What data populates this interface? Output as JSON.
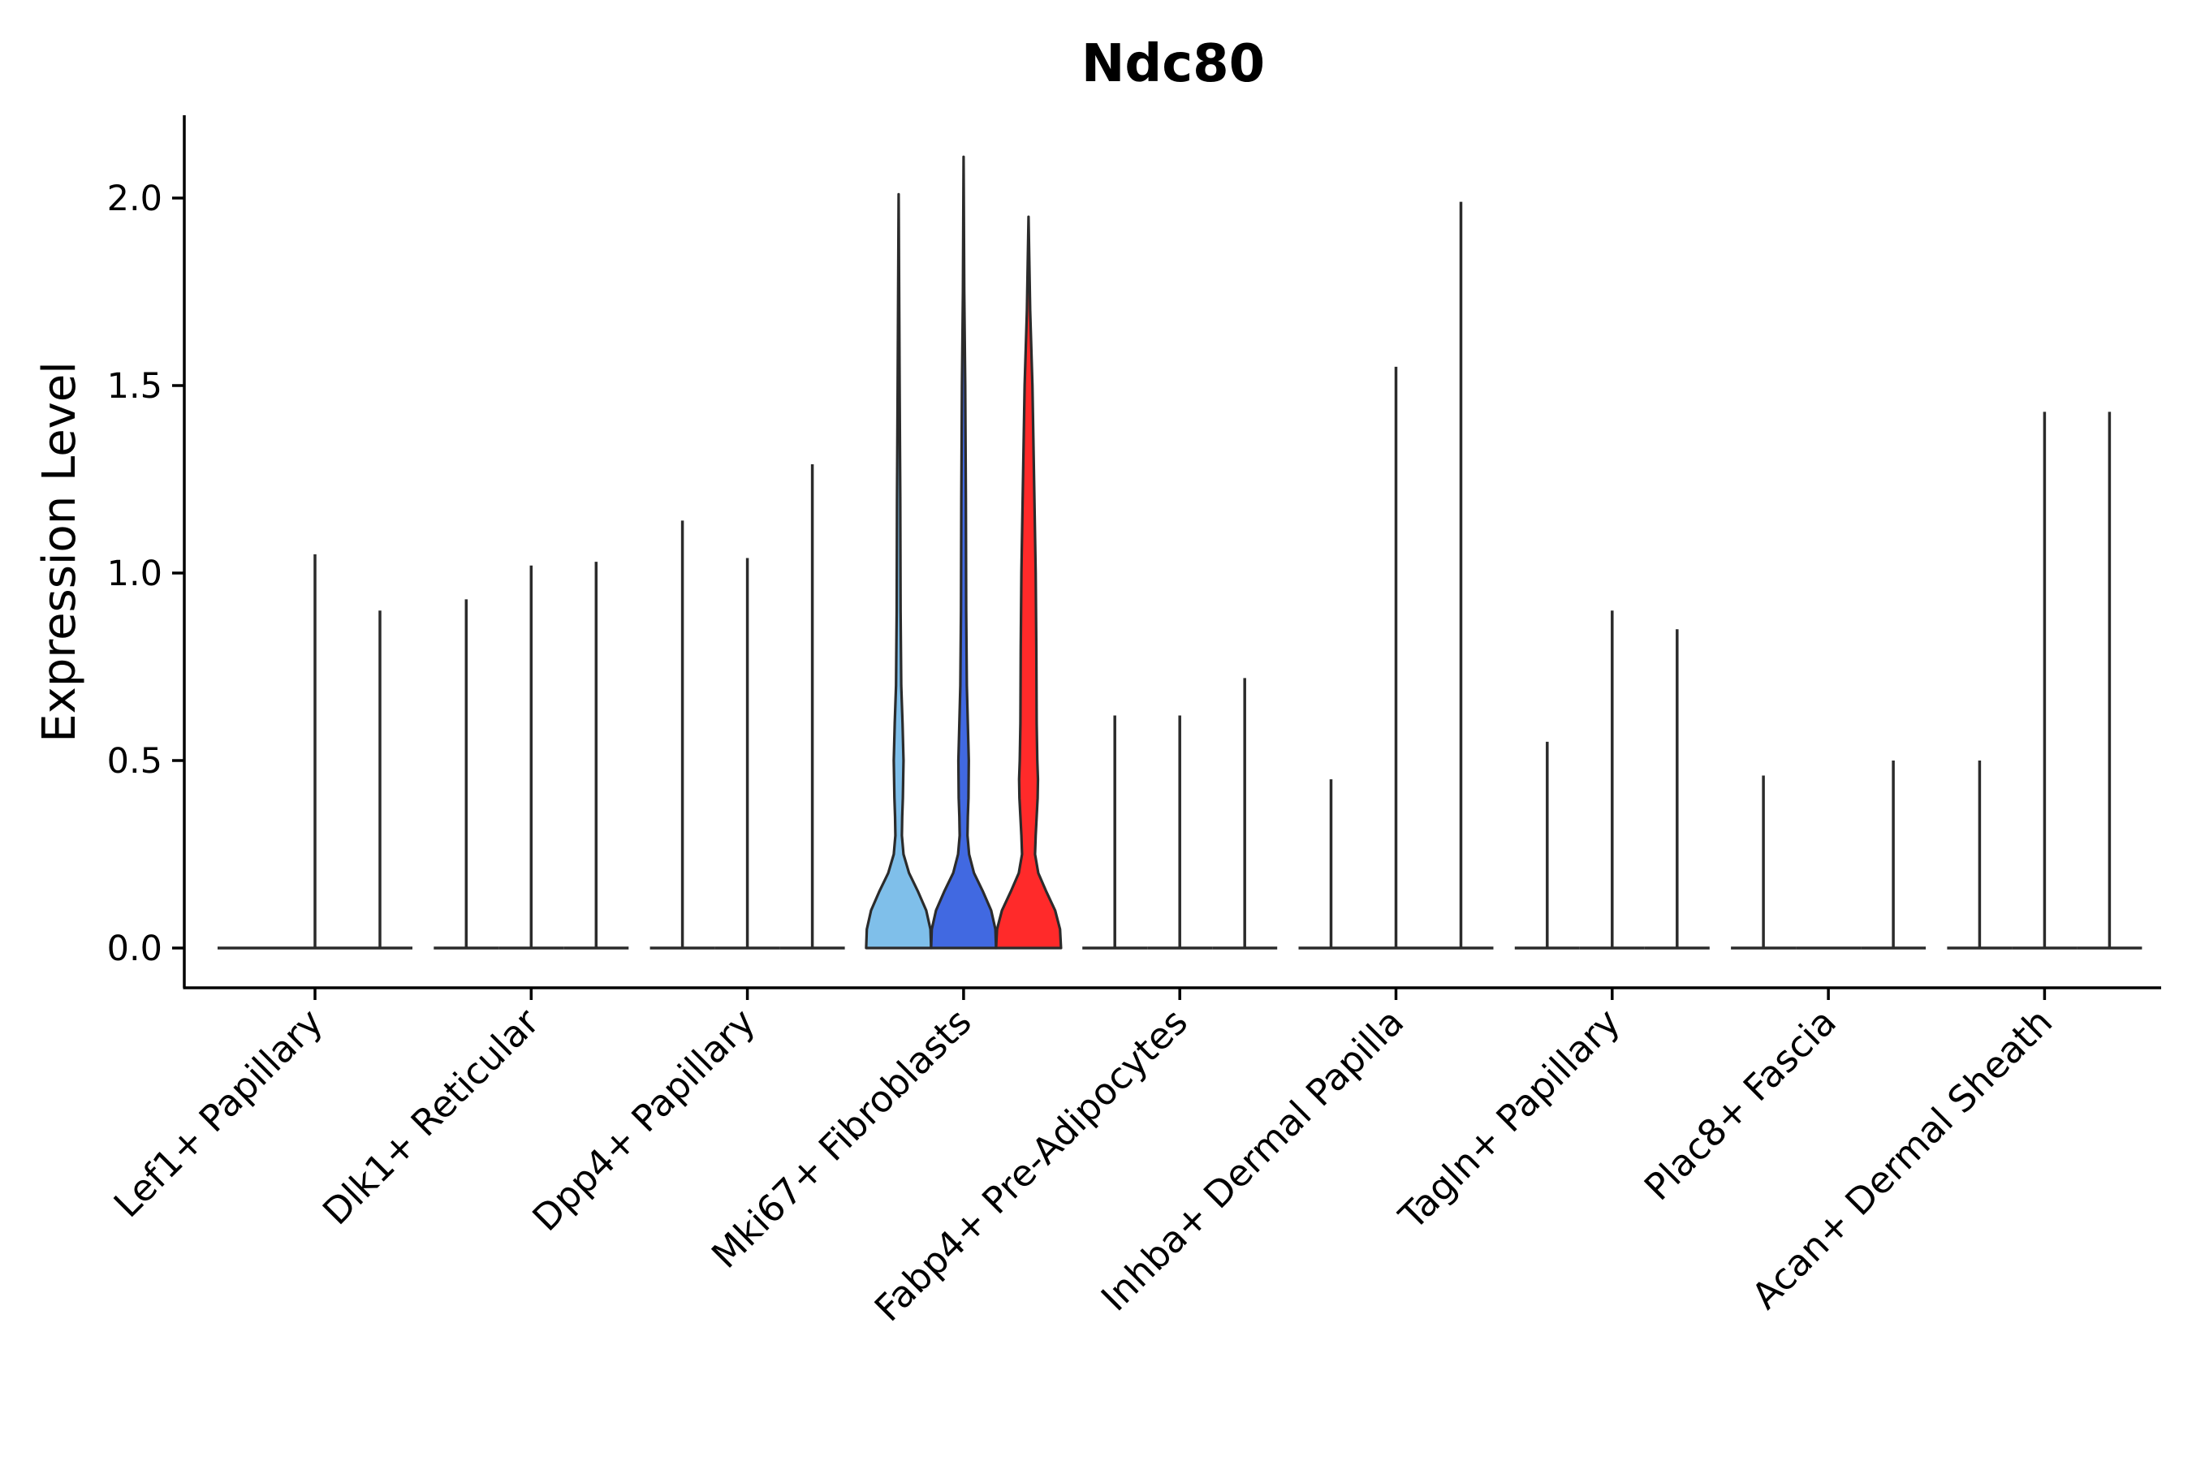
{
  "chart_data": {
    "type": "violin",
    "title": "Ndc80",
    "xlabel": "",
    "ylabel": "Expression Level",
    "ylim": [
      -0.1,
      2.22
    ],
    "yticks": [
      0.0,
      0.5,
      1.0,
      1.5,
      2.0
    ],
    "ytick_labels": [
      "0.0",
      "0.5",
      "1.0",
      "1.5",
      "2.0"
    ],
    "grid": false,
    "legend": "none",
    "categories": [
      "Lef1+ Papillary",
      "Dlk1+ Reticular",
      "Dpp4+ Papillary",
      "Mki67+ Fibroblasts",
      "Fabp4+ Pre-Adipocytes",
      "Inhba+ Dermal Papilla",
      "Tagln+ Papillary",
      "Plac8+ Fascia",
      "Acan+ Dermal Sheath"
    ],
    "sub_groups": 3,
    "max_values": [
      [
        0.0,
        1.05,
        0.9
      ],
      [
        0.93,
        1.02,
        1.03
      ],
      [
        1.14,
        1.04,
        1.29
      ],
      [
        2.01,
        2.11,
        1.95
      ],
      [
        0.62,
        0.62,
        0.72
      ],
      [
        0.45,
        1.55,
        1.99
      ],
      [
        0.55,
        0.9,
        0.85
      ],
      [
        0.46,
        0.0,
        0.5
      ],
      [
        0.5,
        1.43,
        1.43
      ]
    ],
    "filled_violins": [
      {
        "category": "Mki67+ Fibroblasts",
        "sub_index": 0,
        "color": "#7fbfea",
        "max": 2.01,
        "shape_y": [
          0.0,
          0.05,
          0.1,
          0.15,
          0.2,
          0.25,
          0.3,
          0.35,
          0.4,
          0.5,
          0.6,
          0.7,
          0.9,
          1.2,
          1.5,
          2.01
        ],
        "shape_w": [
          1.0,
          0.98,
          0.85,
          0.6,
          0.32,
          0.15,
          0.1,
          0.11,
          0.13,
          0.15,
          0.12,
          0.08,
          0.06,
          0.05,
          0.03,
          0.0
        ]
      },
      {
        "category": "Mki67+ Fibroblasts",
        "sub_index": 1,
        "color": "#4169e1",
        "max": 2.11,
        "shape_y": [
          0.0,
          0.05,
          0.1,
          0.15,
          0.2,
          0.25,
          0.3,
          0.35,
          0.4,
          0.5,
          0.6,
          0.7,
          0.9,
          1.2,
          1.5,
          1.75,
          2.11
        ],
        "shape_w": [
          1.0,
          0.98,
          0.85,
          0.6,
          0.32,
          0.17,
          0.12,
          0.13,
          0.15,
          0.16,
          0.13,
          0.1,
          0.08,
          0.07,
          0.05,
          0.02,
          0.0
        ]
      },
      {
        "category": "Mki67+ Fibroblasts",
        "sub_index": 2,
        "color": "#ff2a2a",
        "max": 1.95,
        "shape_y": [
          0.0,
          0.05,
          0.1,
          0.15,
          0.2,
          0.25,
          0.3,
          0.35,
          0.4,
          0.45,
          0.5,
          0.6,
          0.8,
          1.0,
          1.2,
          1.5,
          1.7,
          1.95
        ],
        "shape_w": [
          1.0,
          0.97,
          0.82,
          0.55,
          0.3,
          0.2,
          0.22,
          0.25,
          0.28,
          0.29,
          0.27,
          0.25,
          0.24,
          0.22,
          0.18,
          0.12,
          0.05,
          0.0
        ]
      }
    ]
  }
}
